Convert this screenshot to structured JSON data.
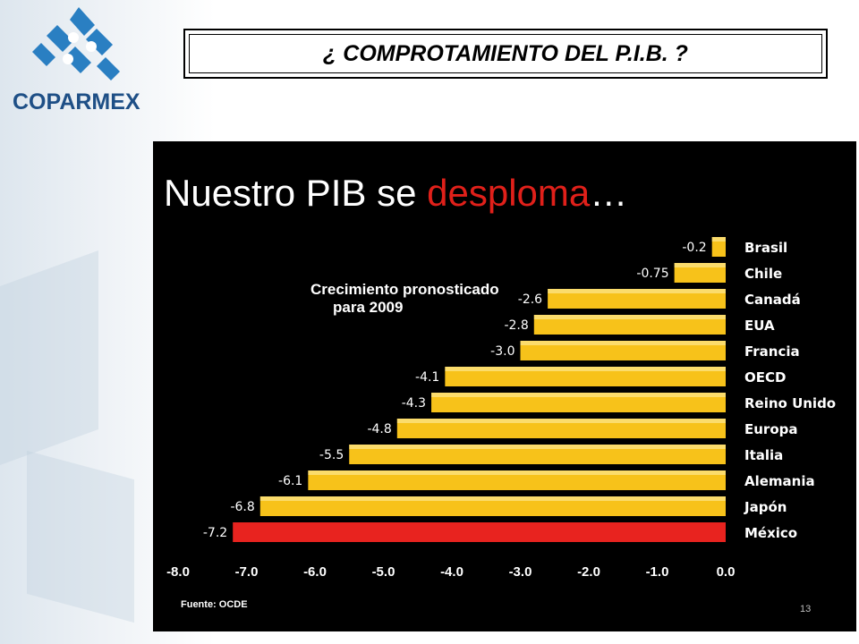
{
  "header": {
    "title": "¿ COMPROTAMIENTO DEL P.I.B. ?",
    "logo_text": "COPARMEX"
  },
  "slide": {
    "headline_part1": "Nuestro PIB se ",
    "headline_highlight": "desploma",
    "headline_part2": "…",
    "subtitle_line1": "Crecimiento pronosticado",
    "subtitle_line2": "para 2009",
    "source": "Fuente: OCDE",
    "page_number": "13"
  },
  "colors": {
    "bar": "#f7c21a",
    "bar_highlight": "#e8231f",
    "slide_background": "#000000",
    "logo": "#2a7fc2"
  },
  "chart_data": {
    "type": "bar",
    "orientation": "horizontal",
    "categories": [
      "Brasil",
      "Chile",
      "Canadá",
      "EUA",
      "Francia",
      "OECD",
      "Reino Unido",
      "Europa",
      "Italia",
      "Alemania",
      "Japón",
      "México"
    ],
    "values": [
      -0.2,
      -0.75,
      -2.6,
      -2.8,
      -3.0,
      -4.1,
      -4.3,
      -4.8,
      -5.5,
      -6.1,
      -6.8,
      -7.2
    ],
    "value_labels": [
      "-0.2",
      "-0.75",
      "-2.6",
      "-2.8",
      "-3.0",
      "-4.1",
      "-4.3",
      "-4.8",
      "-5.5",
      "-6.1",
      "-6.8",
      "-7.2"
    ],
    "highlight": "México",
    "xlim": [
      -8.0,
      0.0
    ],
    "xticks": [
      -8.0,
      -7.0,
      -6.0,
      -5.0,
      -4.0,
      -3.0,
      -2.0,
      -1.0,
      0.0
    ],
    "xtick_labels": [
      "-8.0",
      "-7.0",
      "-6.0",
      "-5.0",
      "-4.0",
      "-3.0",
      "-2.0",
      "-1.0",
      "0.0"
    ],
    "title": "Nuestro PIB se desploma…",
    "xlabel": "",
    "ylabel": "",
    "grid": false
  }
}
